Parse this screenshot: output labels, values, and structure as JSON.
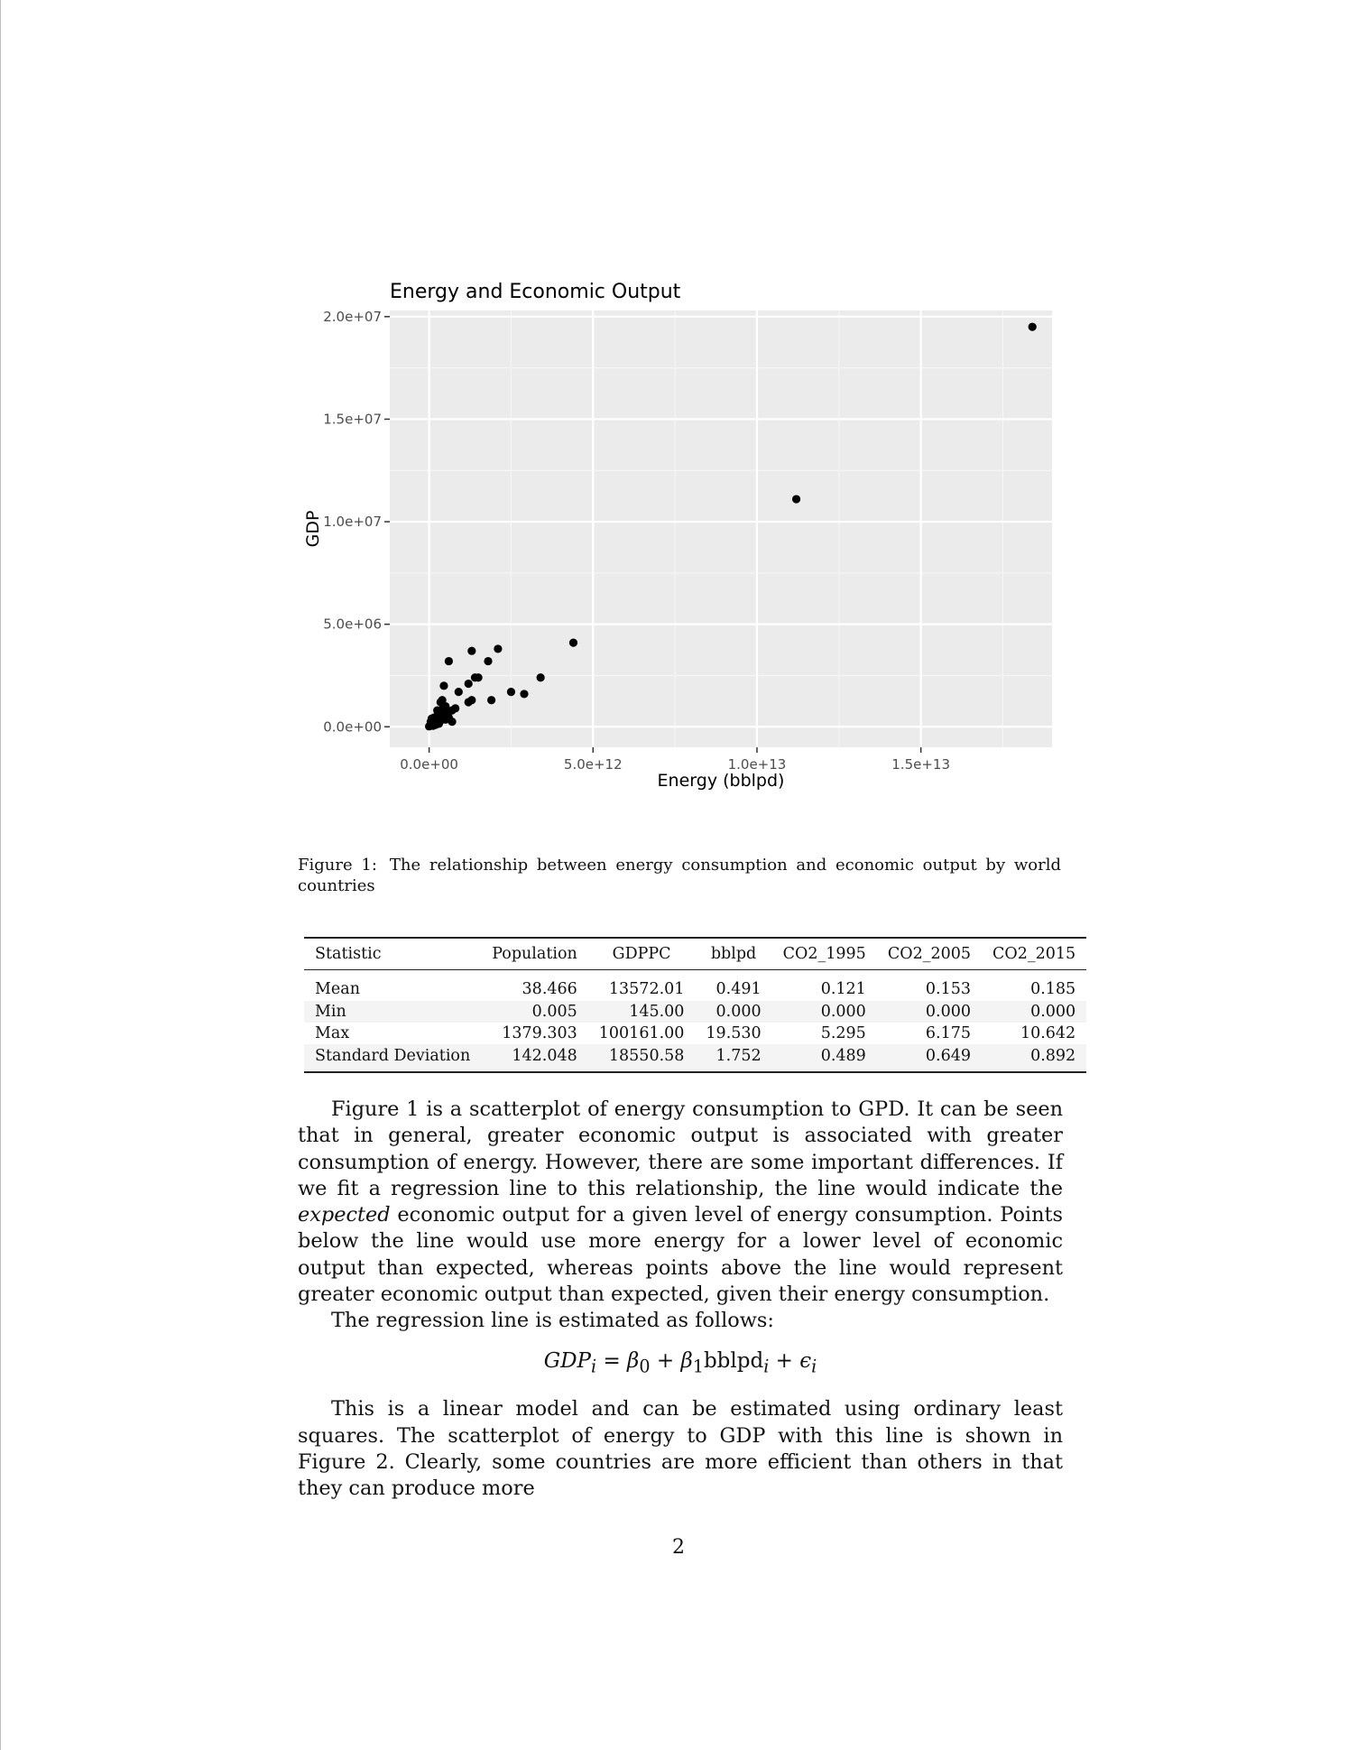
{
  "figure": {
    "caption_label": "Figure 1:",
    "caption_text": "The relationship between energy consumption and economic output by world countries"
  },
  "chart_data": {
    "type": "scatter",
    "title": "Energy and Economic Output",
    "xlabel": "Energy (bblpd)",
    "ylabel": "GDP",
    "xlim": [
      -1200000000000.0,
      19000000000000.0
    ],
    "ylim": [
      -1000000.0,
      20300000.0
    ],
    "x_ticks": [
      0,
      5000000000000.0,
      10000000000000.0,
      15000000000000.0
    ],
    "x_tick_labels": [
      "0.0e+00",
      "5.0e+12",
      "1.0e+13",
      "1.5e+13"
    ],
    "y_ticks": [
      0,
      5000000.0,
      10000000.0,
      15000000.0,
      20000000.0
    ],
    "y_tick_labels": [
      "0.0e+00",
      "5.0e+06",
      "1.0e+07",
      "1.5e+07",
      "2.0e+07"
    ],
    "grid": true,
    "points": [
      [
        18400000000000.0,
        19500000.0
      ],
      [
        11200000000000.0,
        11100000.0
      ],
      [
        4400000000000.0,
        4100000.0
      ],
      [
        3400000000000.0,
        2400000.0
      ],
      [
        2900000000000.0,
        1600000.0
      ],
      [
        2500000000000.0,
        1700000.0
      ],
      [
        2100000000000.0,
        3800000.0
      ],
      [
        1900000000000.0,
        1300000.0
      ],
      [
        1800000000000.0,
        3200000.0
      ],
      [
        1500000000000.0,
        2400000.0
      ],
      [
        1300000000000.0,
        3700000.0
      ],
      [
        1400000000000.0,
        2400000.0
      ],
      [
        1200000000000.0,
        2100000.0
      ],
      [
        1300000000000.0,
        1300000.0
      ],
      [
        1200000000000.0,
        1200000.0
      ],
      [
        900000000000.0,
        1700000.0
      ],
      [
        600000000000.0,
        3200000.0
      ],
      [
        450000000000.0,
        2000000.0
      ],
      [
        400000000000.0,
        1300000.0
      ],
      [
        350000000000.0,
        1200000.0
      ],
      [
        800000000000.0,
        900000.0
      ],
      [
        700000000000.0,
        800000.0
      ],
      [
        550000000000.0,
        750000.0
      ],
      [
        400000000000.0,
        850000.0
      ],
      [
        300000000000.0,
        700000.0
      ],
      [
        250000000000.0,
        550000.0
      ],
      [
        600000000000.0,
        450000.0
      ],
      [
        500000000000.0,
        350000.0
      ],
      [
        700000000000.0,
        250000.0
      ],
      [
        350000000000.0,
        300000.0
      ],
      [
        200000000000.0,
        350000.0
      ],
      [
        150000000000.0,
        200000.0
      ],
      [
        100000000000.0,
        150000.0
      ],
      [
        50000000000.0,
        100000.0
      ],
      [
        20000000000.0,
        50000.0
      ],
      [
        0.0,
        20000.0
      ],
      [
        80000000000.0,
        400000.0
      ],
      [
        300000000000.0,
        500000.0
      ],
      [
        450000000000.0,
        600000.0
      ],
      [
        120000000000.0,
        50000.0
      ],
      [
        200000000000.0,
        100000.0
      ],
      [
        300000000000.0,
        150000.0
      ],
      [
        50000000000.0,
        250000.0
      ],
      [
        150000000000.0,
        450000.0
      ],
      [
        500000000000.0,
        1000000.0
      ],
      [
        250000000000.0,
        800000.0
      ]
    ]
  },
  "table": {
    "headers": [
      "Statistic",
      "Population",
      "GDPPC",
      "bblpd",
      "CO2_1995",
      "CO2_2005",
      "CO2_2015"
    ],
    "rows": [
      [
        "Mean",
        "38.466",
        "13572.01",
        "0.491",
        "0.121",
        "0.153",
        "0.185"
      ],
      [
        "Min",
        "0.005",
        "145.00",
        "0.000",
        "0.000",
        "0.000",
        "0.000"
      ],
      [
        "Max",
        "1379.303",
        "100161.00",
        "19.530",
        "5.295",
        "6.175",
        "10.642"
      ],
      [
        "Standard Deviation",
        "142.048",
        "18550.58",
        "1.752",
        "0.489",
        "0.649",
        "0.892"
      ]
    ]
  },
  "body": {
    "p1_a": "Figure 1 is a scatterplot of energy consumption to GPD. It can be seen that in general, greater economic output is associated with greater consumption of energy. However, there are some important differences. If we fit a regression line to this relationship, the line would indicate the ",
    "p1_em": "expected",
    "p1_b": " economic output for a given level of energy consumption. Points below the line would use more energy for a lower level of economic output than expected, whereas points above the line would represent greater economic output than expected, given their energy consumption.",
    "p2": "The regression line is estimated as follows:",
    "eq_lhs": "GDP",
    "eq_sub_i": "i",
    "eq_eq": " = ",
    "eq_beta": "β",
    "eq_sub_0": "0",
    "eq_plus": " + ",
    "eq_sub_1": "1",
    "eq_var": "bblpd",
    "eq_eps": "ϵ",
    "p3": "This is a linear model and can be estimated using ordinary least squares. The scatterplot of energy to GDP with this line is shown in Figure 2. Clearly, some countries are more efficient than others in that they can produce more"
  },
  "page_number": "2"
}
